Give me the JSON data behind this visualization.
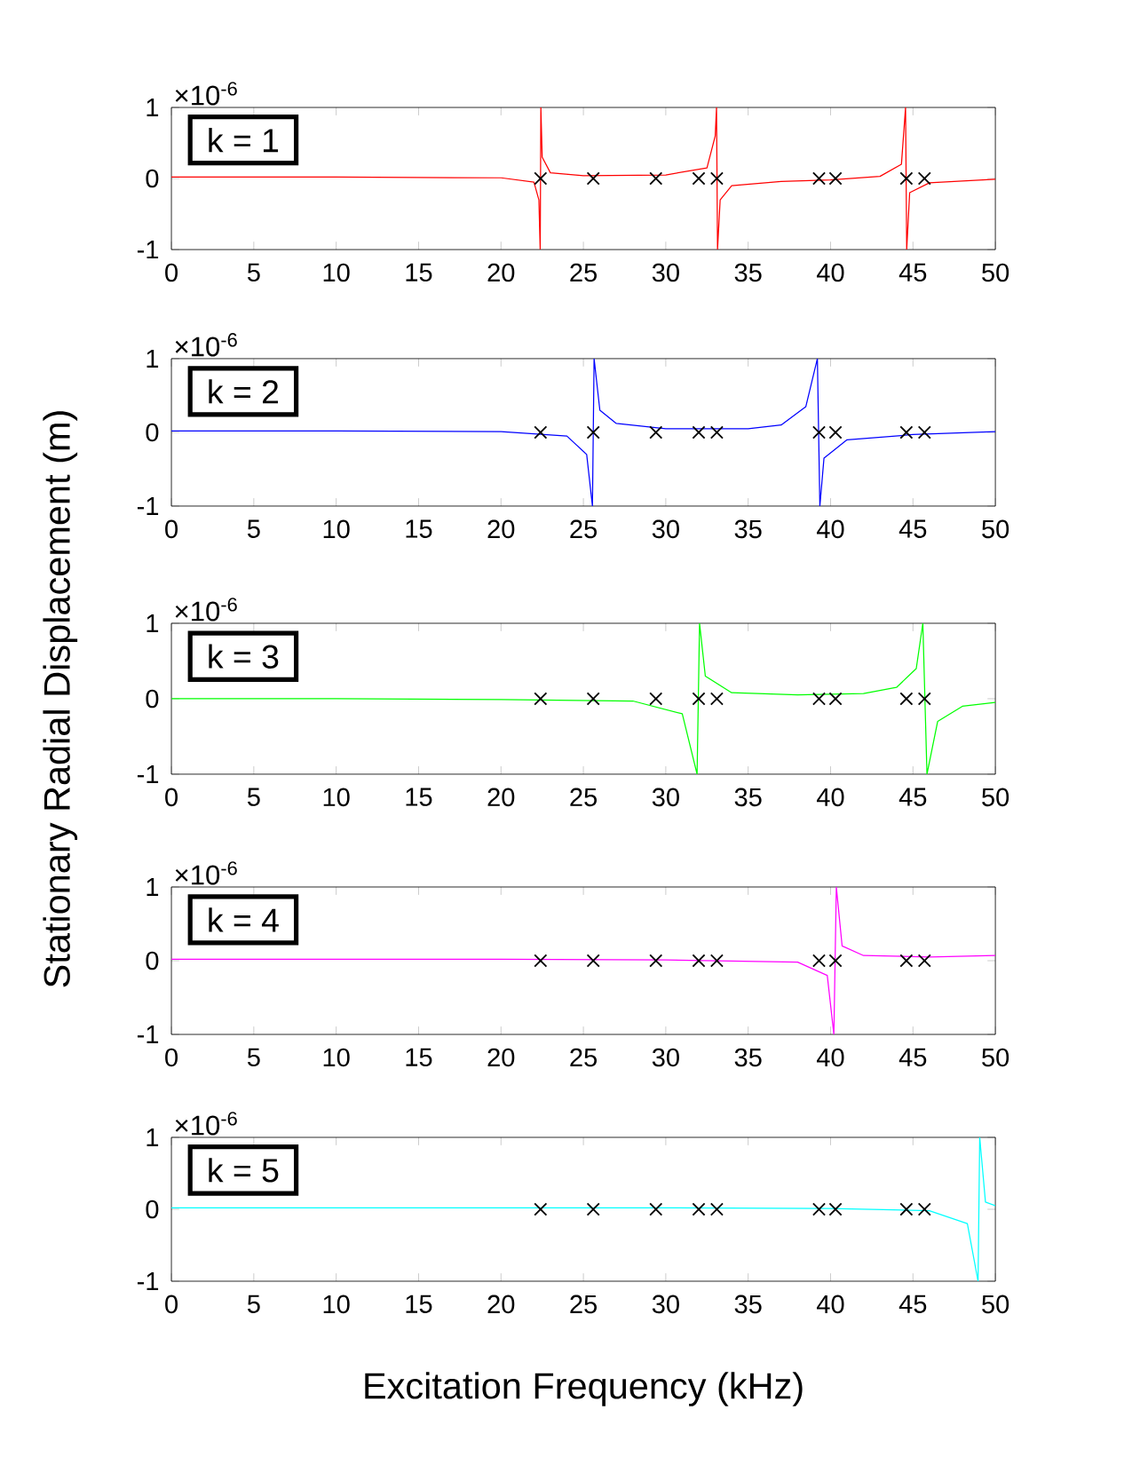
{
  "chart_data": [
    {
      "type": "line",
      "xlim": [
        0,
        50
      ],
      "xticks": [
        0,
        5,
        10,
        15,
        20,
        25,
        30,
        35,
        40,
        45,
        50
      ],
      "ylim": [
        -1,
        1
      ],
      "yticks": [
        -1,
        0,
        1
      ],
      "annotations": [
        "×10$^{-6}$",
        "k = 1"
      ],
      "series": [
        {
          "color": "#ff0000",
          "x": [
            0,
            10,
            20,
            22.0,
            22.3,
            22.38,
            22.42,
            22.5,
            23,
            25,
            30,
            32.5,
            33.0,
            33.08,
            33.14,
            33.3,
            34,
            37,
            40,
            43,
            44.3,
            44.55,
            44.62,
            44.8,
            46,
            50
          ],
          "values": [
            0.02,
            0.02,
            0.01,
            -0.05,
            -0.3,
            -1,
            1,
            0.3,
            0.08,
            0.04,
            0.05,
            0.15,
            0.6,
            1,
            -1,
            -0.3,
            -0.1,
            -0.04,
            -0.02,
            0.03,
            0.2,
            1,
            -1,
            -0.2,
            -0.06,
            -0.01
          ]
        },
        {
          "type": "scatter",
          "marker": "cross",
          "color": "#000000",
          "x": [
            22.4,
            25.6,
            29.4,
            32.0,
            33.1,
            39.3,
            40.3,
            44.6,
            45.7
          ],
          "values": [
            0,
            0,
            0,
            0,
            0,
            0,
            0,
            0,
            0
          ]
        }
      ]
    },
    {
      "type": "line",
      "xlim": [
        0,
        50
      ],
      "xticks": [
        0,
        5,
        10,
        15,
        20,
        25,
        30,
        35,
        40,
        45,
        50
      ],
      "ylim": [
        -1,
        1
      ],
      "yticks": [
        -1,
        0,
        1
      ],
      "annotations": [
        "×10$^{-6}$",
        "k = 2"
      ],
      "series": [
        {
          "color": "#0000ff",
          "x": [
            0,
            10,
            20,
            24,
            25.2,
            25.55,
            25.65,
            26,
            27,
            30,
            35,
            37,
            38.5,
            39.2,
            39.35,
            39.6,
            41,
            45,
            50
          ],
          "values": [
            0.02,
            0.02,
            0.01,
            -0.05,
            -0.3,
            -1,
            1,
            0.3,
            0.12,
            0.05,
            0.05,
            0.1,
            0.35,
            1,
            -1,
            -0.35,
            -0.1,
            -0.03,
            0.01
          ]
        },
        {
          "type": "scatter",
          "marker": "cross",
          "color": "#000000",
          "x": [
            22.4,
            25.6,
            29.4,
            32.0,
            33.1,
            39.3,
            40.3,
            44.6,
            45.7
          ],
          "values": [
            0,
            0,
            0,
            0,
            0,
            0,
            0,
            0,
            0
          ]
        }
      ]
    },
    {
      "type": "line",
      "ylabel": "Stationary Radial Displacement  (m)",
      "xlim": [
        0,
        50
      ],
      "xticks": [
        0,
        5,
        10,
        15,
        20,
        25,
        30,
        35,
        40,
        45,
        50
      ],
      "ylim": [
        -1,
        1
      ],
      "yticks": [
        -1,
        0,
        1
      ],
      "annotations": [
        "×10$^{-6}$",
        "k = 3"
      ],
      "series": [
        {
          "color": "#00ff00",
          "x": [
            0,
            10,
            20,
            28,
            31,
            31.9,
            32.05,
            32.4,
            34,
            38,
            42,
            44,
            45.2,
            45.6,
            45.85,
            46.5,
            48,
            50
          ],
          "values": [
            0,
            0,
            -0.01,
            -0.03,
            -0.2,
            -1,
            1,
            0.3,
            0.08,
            0.05,
            0.07,
            0.15,
            0.4,
            1,
            -1,
            -0.3,
            -0.1,
            -0.05
          ]
        },
        {
          "type": "scatter",
          "marker": "cross",
          "color": "#000000",
          "x": [
            22.4,
            25.6,
            29.4,
            32.0,
            33.1,
            39.3,
            40.3,
            44.6,
            45.7
          ],
          "values": [
            0,
            0,
            0,
            0,
            0,
            0,
            0,
            0,
            0
          ]
        }
      ]
    },
    {
      "type": "line",
      "xlim": [
        0,
        50
      ],
      "xticks": [
        0,
        5,
        10,
        15,
        20,
        25,
        30,
        35,
        40,
        45,
        50
      ],
      "ylim": [
        -1,
        1
      ],
      "yticks": [
        -1,
        0,
        1
      ],
      "annotations": [
        "×10$^{-6}$",
        "k = 4"
      ],
      "series": [
        {
          "color": "#ff00ff",
          "x": [
            0,
            10,
            20,
            30,
            38,
            39.8,
            40.2,
            40.35,
            40.7,
            42,
            46,
            50
          ],
          "values": [
            0.02,
            0.02,
            0.02,
            0.01,
            -0.02,
            -0.2,
            -1,
            1,
            0.2,
            0.07,
            0.05,
            0.07
          ]
        },
        {
          "type": "scatter",
          "marker": "cross",
          "color": "#000000",
          "x": [
            22.4,
            25.6,
            29.4,
            32.0,
            33.1,
            39.3,
            40.3,
            44.6,
            45.7
          ],
          "values": [
            0,
            0,
            0,
            0,
            0,
            0,
            0,
            0,
            0
          ]
        }
      ]
    },
    {
      "type": "line",
      "xlabel": "Excitation Frequency  (kHz)",
      "xlim": [
        0,
        50
      ],
      "xticks": [
        0,
        5,
        10,
        15,
        20,
        25,
        30,
        35,
        40,
        45,
        50
      ],
      "ylim": [
        -1,
        1
      ],
      "yticks": [
        -1,
        0,
        1
      ],
      "annotations": [
        "×10$^{-6}$",
        "k = 5"
      ],
      "series": [
        {
          "color": "#00ffff",
          "x": [
            0,
            10,
            20,
            30,
            40,
            46,
            48.3,
            48.95,
            49.05,
            49.4,
            50
          ],
          "values": [
            0.02,
            0.02,
            0.02,
            0.02,
            0.01,
            -0.02,
            -0.2,
            -1,
            1,
            0.1,
            0.05
          ]
        },
        {
          "type": "scatter",
          "marker": "cross",
          "color": "#000000",
          "x": [
            22.4,
            25.6,
            29.4,
            32.0,
            33.1,
            39.3,
            40.3,
            44.6,
            45.7
          ],
          "values": [
            0,
            0,
            0,
            0,
            0,
            0,
            0,
            0,
            0
          ]
        }
      ]
    }
  ]
}
